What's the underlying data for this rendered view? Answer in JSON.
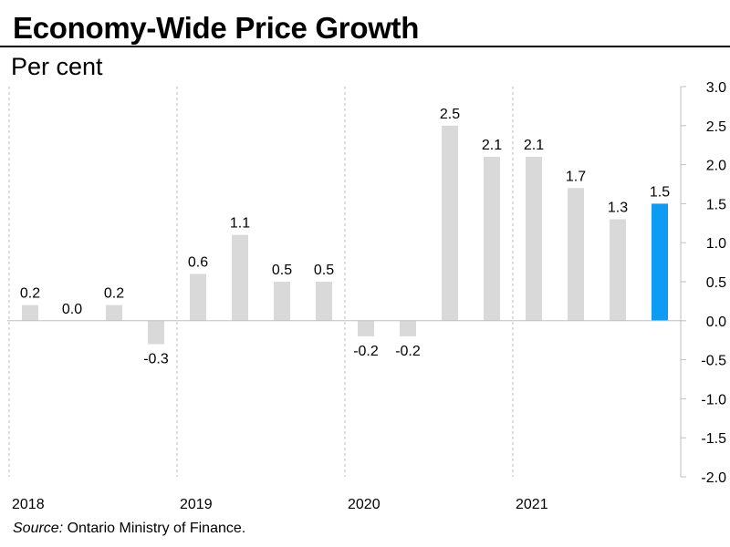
{
  "header": {
    "title": "Economy-Wide Price Growth",
    "subtitle": "Per cent"
  },
  "footer": {
    "source_label": "Source:",
    "source_text": " Ontario Ministry of Finance."
  },
  "colors": {
    "bar": "#d9d9d9",
    "highlight": "#0d9bf3",
    "grid": "#bfbfbf",
    "text": "#000000"
  },
  "chart_data": {
    "type": "bar",
    "title": "Economy-Wide Price Growth",
    "ylabel": "Per cent",
    "xlabel": "",
    "ylim": [
      -2.0,
      3.0
    ],
    "yticks": [
      "-2.0",
      "-1.5",
      "-1.0",
      "-0.5",
      "0.0",
      "0.5",
      "1.0",
      "1.5",
      "2.0",
      "2.5",
      "3.0"
    ],
    "year_labels": [
      "2018",
      "2019",
      "2020",
      "2021"
    ],
    "values": [
      0.2,
      0.0,
      0.2,
      -0.3,
      0.6,
      1.1,
      0.5,
      0.5,
      -0.2,
      -0.2,
      2.5,
      2.1,
      2.1,
      1.7,
      1.3,
      1.5
    ],
    "data_labels": [
      "0.2",
      "0.0",
      "0.2",
      "-0.3",
      "0.6",
      "1.1",
      "0.5",
      "0.5",
      "-0.2",
      "-0.2",
      "2.5",
      "2.1",
      "2.1",
      "1.7",
      "1.3",
      "1.5"
    ],
    "highlight_index": 15,
    "grid": "vertical dashed year separators",
    "legend": "none"
  }
}
